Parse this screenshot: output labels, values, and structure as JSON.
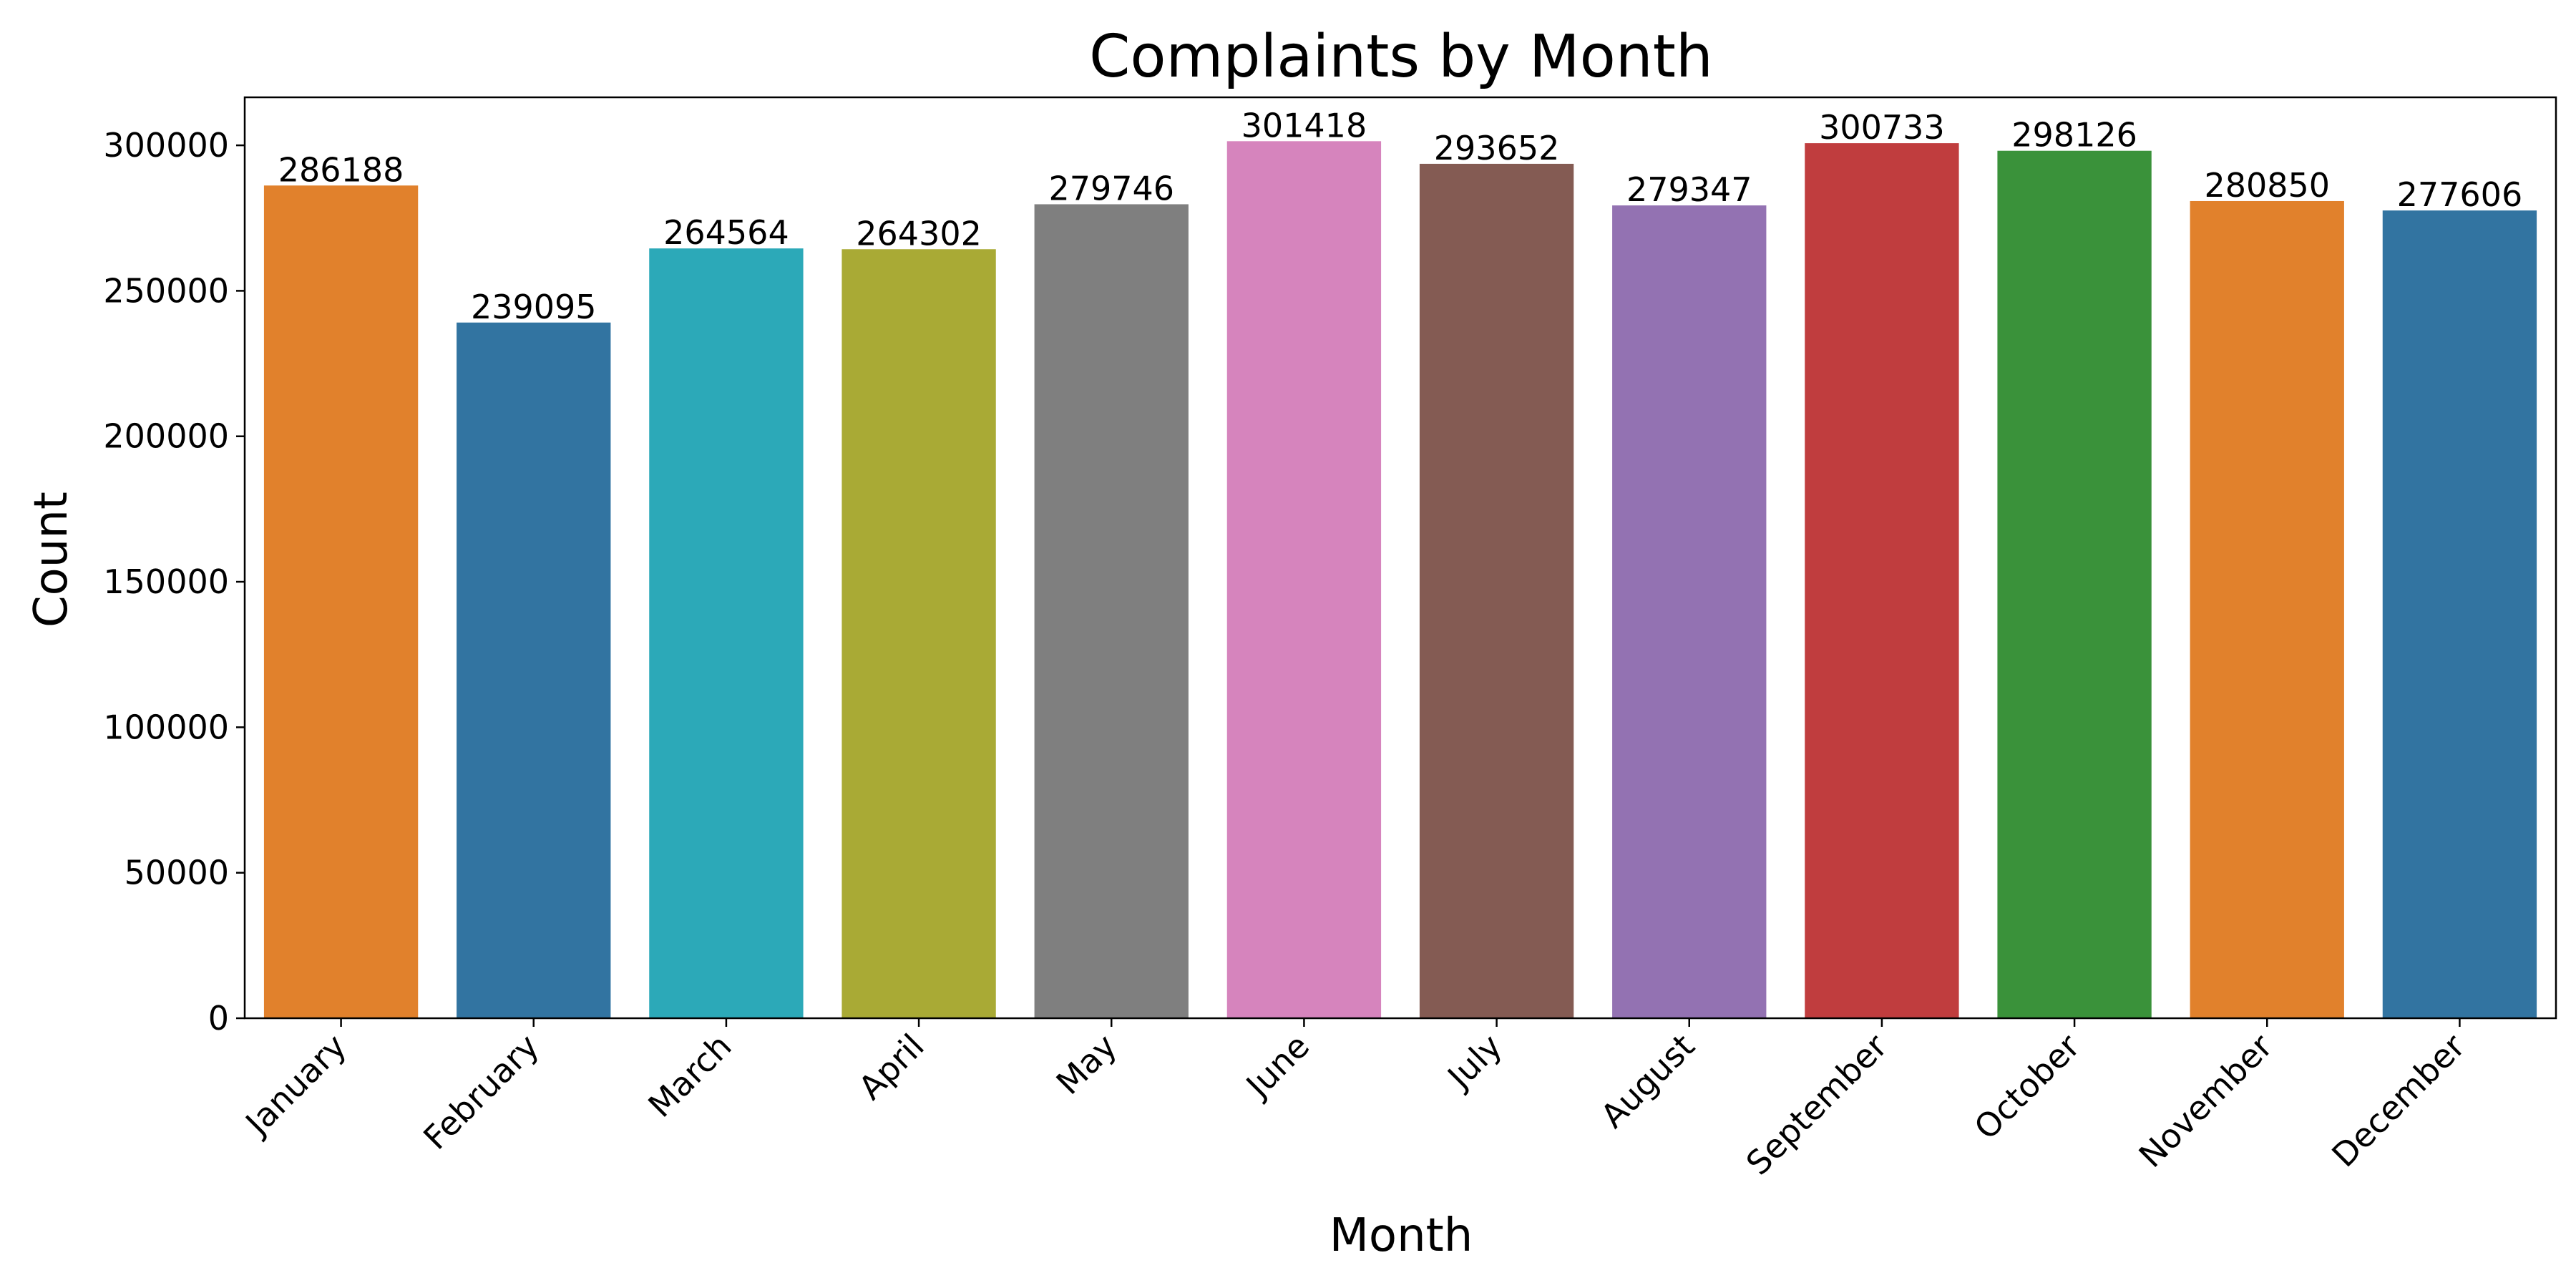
{
  "chart_data": {
    "type": "bar",
    "title": "Complaints by Month",
    "xlabel": "Month",
    "ylabel": "Count",
    "categories": [
      "January",
      "February",
      "March",
      "April",
      "May",
      "June",
      "July",
      "August",
      "September",
      "October",
      "November",
      "December"
    ],
    "values": [
      286188,
      239095,
      264564,
      264302,
      279746,
      301418,
      293652,
      279347,
      300733,
      298126,
      280850,
      277606
    ],
    "value_labels": [
      "286188",
      "239095",
      "264564",
      "264302",
      "279746",
      "301418",
      "293652",
      "279347",
      "300733",
      "298126",
      "280850",
      "277606"
    ],
    "colors": [
      "#e1812c",
      "#3274a1",
      "#2ca9b8",
      "#a9aa35",
      "#7f7f7f",
      "#d684bd",
      "#845b53",
      "#9372b2",
      "#c03d3e",
      "#3a923a",
      "#e1812c",
      "#3274a1"
    ],
    "ylim": [
      0,
      316500
    ],
    "yticks": [
      0,
      50000,
      100000,
      150000,
      200000,
      250000,
      300000
    ],
    "ytick_labels": [
      "0",
      "50000",
      "100000",
      "150000",
      "200000",
      "250000",
      "300000"
    ],
    "grid": false,
    "legend": "none"
  }
}
